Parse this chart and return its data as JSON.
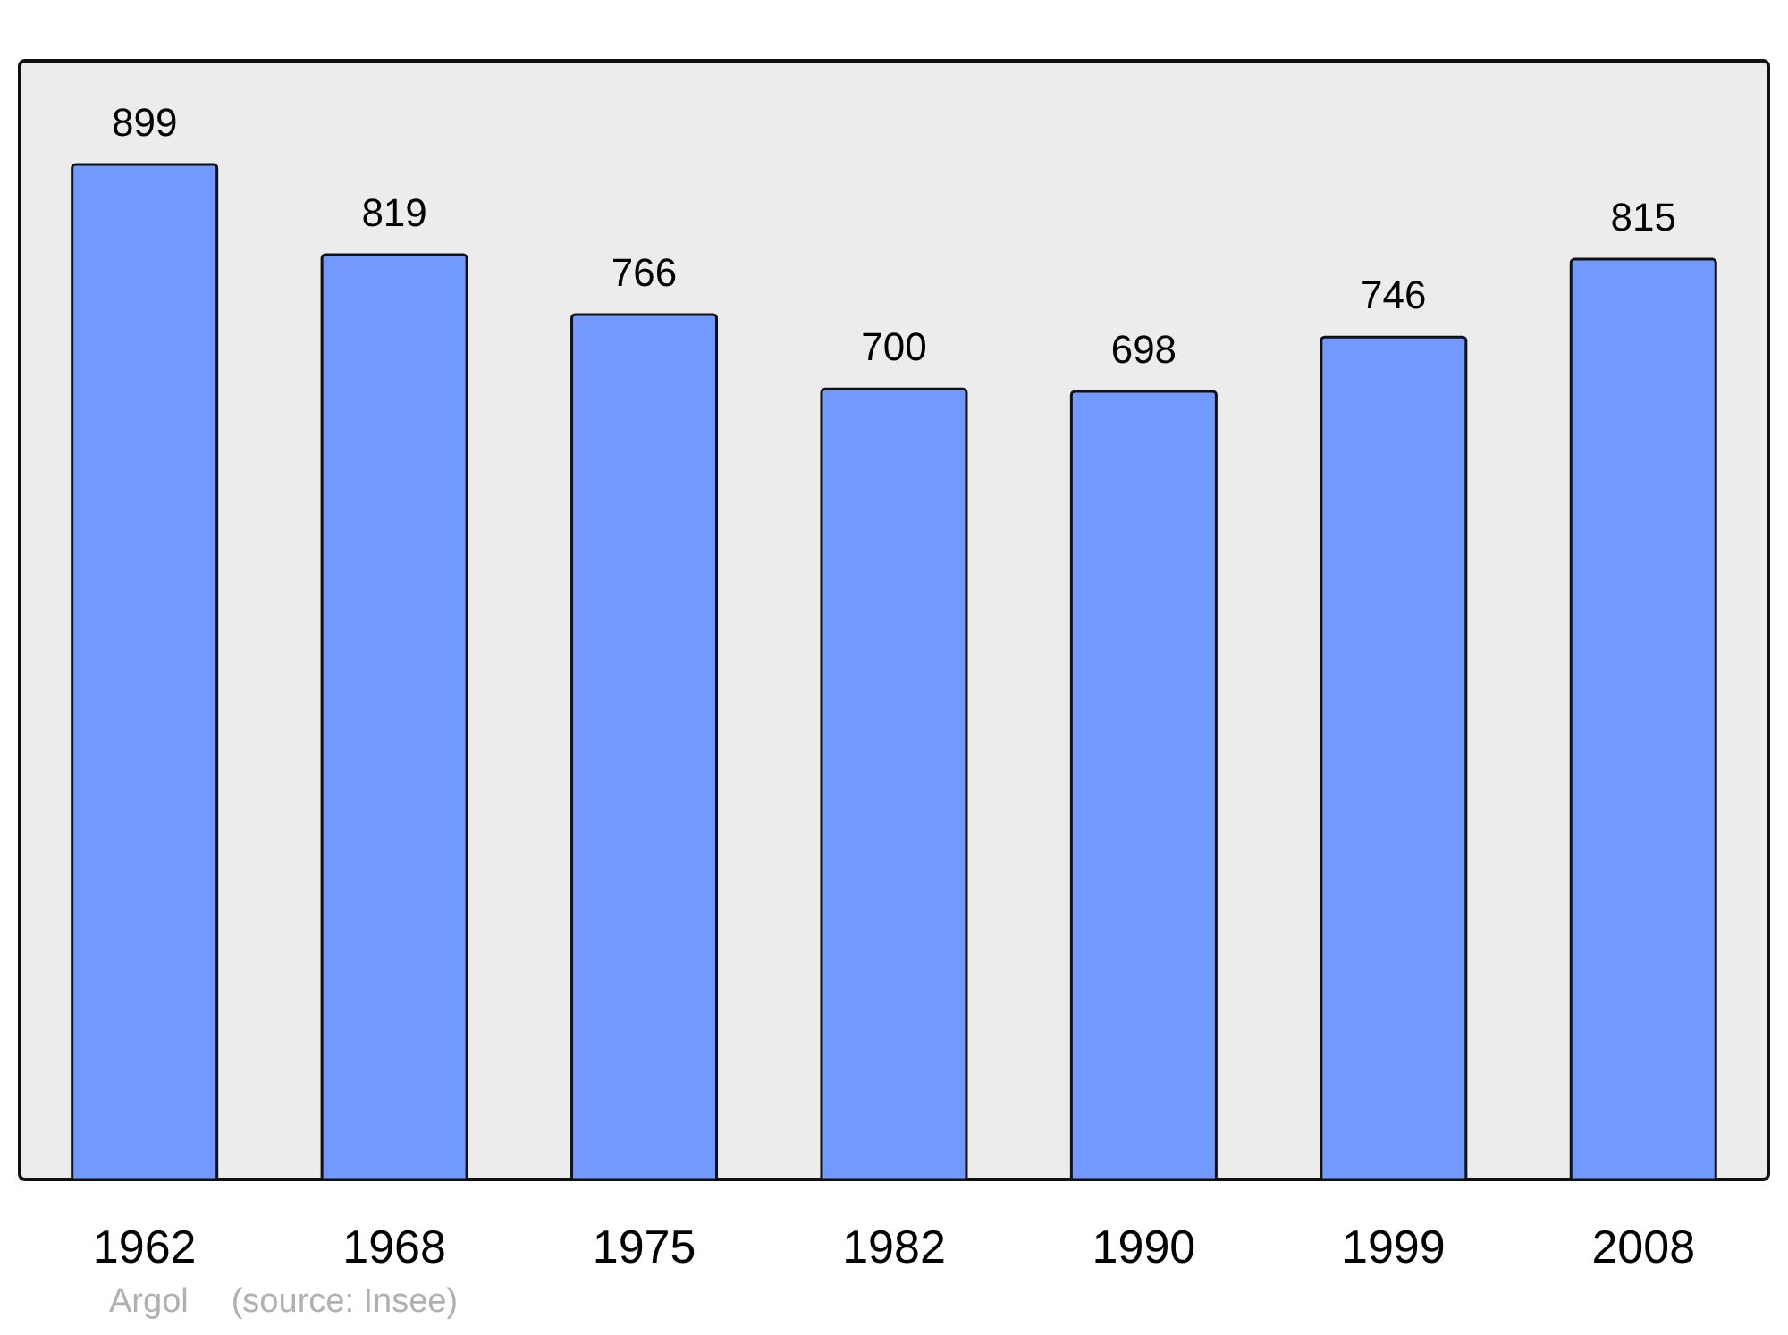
{
  "chart_data": {
    "type": "bar",
    "categories": [
      "1962",
      "1968",
      "1975",
      "1982",
      "1990",
      "1999",
      "2008"
    ],
    "values": [
      899,
      819,
      766,
      700,
      698,
      746,
      815
    ],
    "color": "#7299ff",
    "data_labels": true,
    "annotations": [
      "Argol",
      "(source: Insee)"
    ]
  }
}
